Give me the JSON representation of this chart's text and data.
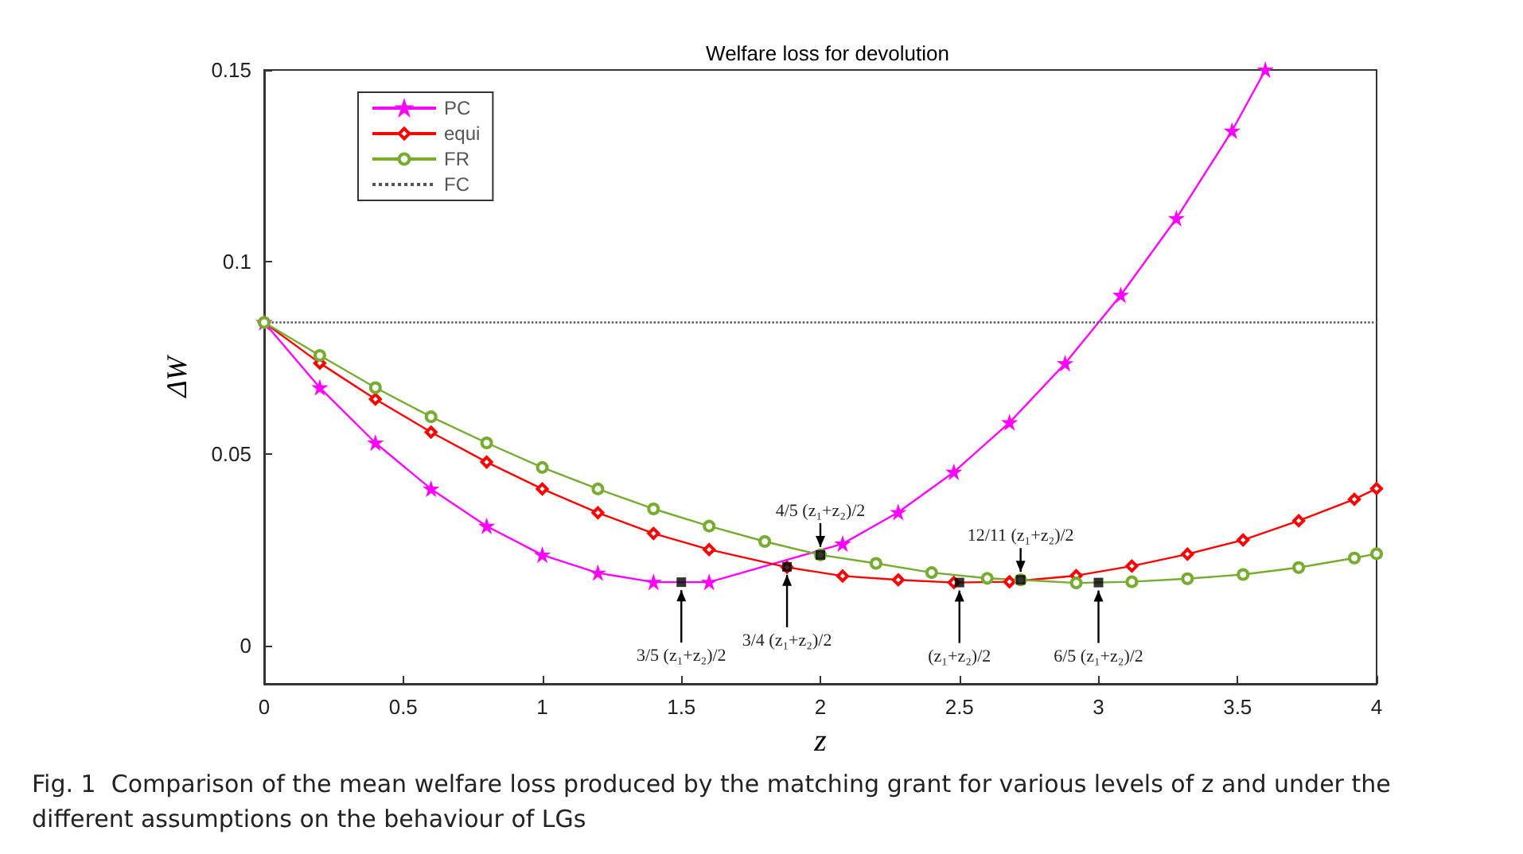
{
  "chart_data": {
    "type": "line",
    "title": "Welfare loss for devolution",
    "xlabel": "z",
    "ylabel": "ΔW",
    "xlim": [
      0,
      4
    ],
    "xticks": [
      0,
      0.5,
      1,
      1.5,
      2,
      2.5,
      3,
      3.5,
      4
    ],
    "ylim": [
      -0.01,
      0.15
    ],
    "yticks": [
      0,
      0.05,
      0.1,
      0.15
    ],
    "grid": false,
    "legend": "top left",
    "series": [
      {
        "name": "PC",
        "color": "#ff00ff",
        "marker": "star",
        "x": [
          0,
          0.2,
          0.4,
          0.6,
          0.8,
          1.0,
          1.2,
          1.4,
          1.6,
          2.08,
          2.28,
          2.48,
          2.68,
          2.88,
          3.08,
          3.28,
          3.48,
          3.6
        ],
        "values": [
          0.0842,
          0.0672,
          0.0528,
          0.0408,
          0.0311,
          0.0236,
          0.0189,
          0.0165,
          0.0165,
          0.0265,
          0.0347,
          0.0452,
          0.0581,
          0.0735,
          0.0913,
          0.1113,
          0.1341,
          0.15
        ]
      },
      {
        "name": "equi",
        "color": "#ff0000",
        "marker": "diamond",
        "x": [
          0,
          0.2,
          0.4,
          0.6,
          0.8,
          1.0,
          1.2,
          1.4,
          1.6,
          1.88,
          2.08,
          2.28,
          2.48,
          2.68,
          2.92,
          3.12,
          3.32,
          3.52,
          3.72,
          3.92,
          4.0
        ],
        "values": [
          0.0842,
          0.0736,
          0.0642,
          0.0556,
          0.0478,
          0.0408,
          0.0346,
          0.0292,
          0.025,
          0.0204,
          0.0181,
          0.0171,
          0.0164,
          0.0166,
          0.0182,
          0.0207,
          0.0238,
          0.0275,
          0.0325,
          0.0381,
          0.0409
        ]
      },
      {
        "name": "FR",
        "color": "#77ac30",
        "marker": "circle",
        "x": [
          0,
          0.2,
          0.4,
          0.6,
          0.8,
          1.0,
          1.2,
          1.4,
          1.6,
          1.8,
          2.0,
          2.2,
          2.4,
          2.6,
          2.72,
          2.92,
          3.12,
          3.32,
          3.52,
          3.72,
          3.92,
          4.0
        ],
        "values": [
          0.0842,
          0.0756,
          0.0672,
          0.0596,
          0.0528,
          0.0464,
          0.0408,
          0.0356,
          0.0311,
          0.0271,
          0.0236,
          0.0214,
          0.019,
          0.0175,
          0.0171,
          0.0163,
          0.0166,
          0.0174,
          0.0185,
          0.0203,
          0.0228,
          0.0239
        ]
      },
      {
        "name": "FC",
        "color": "#555555",
        "marker": "none",
        "line_style": "dotted",
        "x": [
          0,
          4
        ],
        "values": [
          0.0842,
          0.0842
        ]
      }
    ],
    "annotations": [
      {
        "text": "3/5 (z₁+z₂)/2",
        "x": 1.5,
        "y": 0.0165
      },
      {
        "text": "3/4 (z₁+z₂)/2",
        "x": 1.88,
        "y": 0.0205
      },
      {
        "text": "4/5 (z₁+z₂)/2",
        "x": 2.0,
        "y": 0.0236
      },
      {
        "text": "(z₁+z₂)/2",
        "x": 2.5,
        "y": 0.0164
      },
      {
        "text": "12/11 (z₁+z₂)/2",
        "x": 2.72,
        "y": 0.0171
      },
      {
        "text": "6/5 (z₁+z₂)/2",
        "x": 3.0,
        "y": 0.0164
      },
      "Fig. 1  Comparison of the mean welfare loss produced by the matching grant for various levels of z and under the different assumptions on the behaviour of LGs"
    ]
  }
}
